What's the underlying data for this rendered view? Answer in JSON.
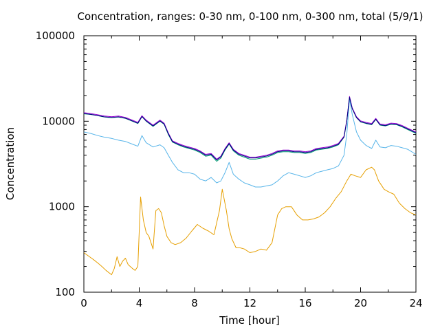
{
  "chart_data": {
    "type": "line",
    "title": "Concentration, ranges: 0-30 nm, 0-100 nm, 0-300 nm, total (5/9/1)",
    "xlabel": "Time [hour]",
    "ylabel": "Concentration",
    "xlim": [
      0,
      24
    ],
    "ylim": [
      100,
      100000
    ],
    "yscale": "log",
    "grid": false,
    "x_ticks": [
      "0",
      "4",
      "8",
      "12",
      "16",
      "20",
      "24"
    ],
    "y_ticks": [
      "100",
      "1000",
      "10000",
      "100000"
    ],
    "colors": {
      "range_0_30": "#e69f00",
      "range_0_100": "#56b4e9",
      "range_0_300": "#009e73",
      "total": "#9400d3",
      "total_dark": "#000080"
    },
    "series": [
      {
        "key": "range_0_30",
        "x": [
          0,
          0.4,
          0.7,
          1.0,
          1.3,
          1.6,
          2.0,
          2.2,
          2.4,
          2.6,
          2.8,
          3.0,
          3.2,
          3.5,
          3.7,
          3.9,
          4.1,
          4.3,
          4.5,
          4.7,
          5.0,
          5.2,
          5.4,
          5.6,
          5.8,
          6.0,
          6.3,
          6.6,
          7.0,
          7.4,
          7.8,
          8.2,
          8.6,
          9.0,
          9.4,
          9.8,
          10.0,
          10.3,
          10.5,
          10.7,
          11.0,
          11.3,
          11.6,
          12.0,
          12.4,
          12.8,
          13.2,
          13.6,
          14.0,
          14.3,
          14.6,
          15.0,
          15.4,
          15.8,
          16.2,
          16.6,
          17.0,
          17.4,
          17.8,
          18.2,
          18.6,
          19.0,
          19.3,
          19.6,
          20.0,
          20.4,
          20.8,
          21.0,
          21.3,
          21.7,
          22.0,
          22.4,
          22.8,
          23.2,
          23.6,
          24.0
        ],
        "y": [
          290,
          260,
          240,
          220,
          200,
          180,
          160,
          190,
          260,
          200,
          230,
          250,
          210,
          190,
          180,
          200,
          1300,
          700,
          500,
          450,
          320,
          900,
          950,
          850,
          600,
          450,
          380,
          360,
          380,
          430,
          520,
          620,
          560,
          520,
          470,
          900,
          1600,
          900,
          550,
          420,
          330,
          330,
          320,
          290,
          300,
          320,
          310,
          380,
          800,
          950,
          1000,
          1000,
          800,
          700,
          700,
          720,
          760,
          850,
          1000,
          1250,
          1500,
          2000,
          2400,
          2300,
          2200,
          2700,
          2900,
          2700,
          2000,
          1600,
          1500,
          1400,
          1100,
          950,
          850,
          800
        ]
      },
      {
        "key": "range_0_100",
        "x": [
          0,
          0.5,
          1.0,
          1.5,
          2.0,
          2.5,
          3.0,
          3.5,
          3.9,
          4.2,
          4.5,
          5.0,
          5.5,
          5.8,
          6.1,
          6.4,
          6.8,
          7.2,
          7.6,
          8.0,
          8.4,
          8.8,
          9.2,
          9.6,
          9.9,
          10.2,
          10.5,
          10.8,
          11.2,
          11.6,
          12.0,
          12.4,
          12.8,
          13.2,
          13.6,
          14.0,
          14.4,
          14.8,
          15.2,
          15.6,
          16.0,
          16.4,
          16.8,
          17.2,
          17.6,
          18.0,
          18.4,
          18.8,
          19.0,
          19.2,
          19.4,
          19.7,
          20.0,
          20.4,
          20.8,
          21.1,
          21.4,
          21.8,
          22.2,
          22.6,
          23.0,
          23.4,
          24.0
        ],
        "y": [
          7500,
          7200,
          6800,
          6500,
          6300,
          6000,
          5800,
          5400,
          5100,
          6800,
          5600,
          5000,
          5300,
          4900,
          4000,
          3300,
          2700,
          2500,
          2500,
          2400,
          2100,
          2000,
          2200,
          1900,
          2000,
          2500,
          3300,
          2400,
          2100,
          1900,
          1800,
          1700,
          1700,
          1750,
          1800,
          2000,
          2300,
          2500,
          2400,
          2300,
          2200,
          2300,
          2500,
          2600,
          2700,
          2800,
          3000,
          4000,
          7000,
          18000,
          12000,
          7500,
          6000,
          5200,
          4800,
          6000,
          5000,
          4900,
          5200,
          5100,
          4900,
          4700,
          4100
        ]
      },
      {
        "key": "range_0_300",
        "x": [
          0,
          0.5,
          1.0,
          1.5,
          2.0,
          2.5,
          3.0,
          3.5,
          3.9,
          4.2,
          4.5,
          5.0,
          5.5,
          5.8,
          6.1,
          6.4,
          6.8,
          7.2,
          7.6,
          8.0,
          8.4,
          8.8,
          9.2,
          9.6,
          9.9,
          10.2,
          10.5,
          10.8,
          11.2,
          11.6,
          12.0,
          12.4,
          12.8,
          13.2,
          13.6,
          14.0,
          14.4,
          14.8,
          15.2,
          15.6,
          16.0,
          16.4,
          16.8,
          17.2,
          17.6,
          18.0,
          18.4,
          18.8,
          19.0,
          19.2,
          19.4,
          19.7,
          20.0,
          20.4,
          20.8,
          21.1,
          21.4,
          21.8,
          22.2,
          22.6,
          23.0,
          23.4,
          24.0
        ],
        "y": [
          12200,
          12000,
          11600,
          11200,
          11000,
          11200,
          10800,
          10000,
          9400,
          11300,
          10000,
          8700,
          10000,
          9200,
          7000,
          5700,
          5300,
          5000,
          4800,
          4600,
          4300,
          3900,
          4000,
          3400,
          3700,
          4600,
          5400,
          4500,
          4000,
          3800,
          3600,
          3600,
          3700,
          3800,
          4000,
          4300,
          4400,
          4400,
          4300,
          4300,
          4200,
          4300,
          4600,
          4700,
          4800,
          5000,
          5300,
          6500,
          10000,
          19000,
          14000,
          11000,
          9800,
          9400,
          9100,
          10500,
          9000,
          8800,
          9200,
          9100,
          8600,
          8000,
          7200
        ]
      },
      {
        "key": "total",
        "x": [
          0,
          0.5,
          1.0,
          1.5,
          2.0,
          2.5,
          3.0,
          3.5,
          3.9,
          4.2,
          4.5,
          5.0,
          5.5,
          5.8,
          6.1,
          6.4,
          6.8,
          7.2,
          7.6,
          8.0,
          8.4,
          8.8,
          9.2,
          9.6,
          9.9,
          10.2,
          10.5,
          10.8,
          11.2,
          11.6,
          12.0,
          12.4,
          12.8,
          13.2,
          13.6,
          14.0,
          14.4,
          14.8,
          15.2,
          15.6,
          16.0,
          16.4,
          16.8,
          17.2,
          17.6,
          18.0,
          18.4,
          18.8,
          19.0,
          19.2,
          19.4,
          19.7,
          20.0,
          20.4,
          20.8,
          21.1,
          21.4,
          21.8,
          22.2,
          22.6,
          23.0,
          23.4,
          24.0
        ],
        "y": [
          12600,
          12300,
          11900,
          11500,
          11300,
          11500,
          11100,
          10300,
          9700,
          11600,
          10300,
          9000,
          10300,
          9500,
          7300,
          5900,
          5500,
          5200,
          5000,
          4800,
          4500,
          4100,
          4200,
          3600,
          3900,
          4800,
          5600,
          4700,
          4200,
          4000,
          3800,
          3800,
          3900,
          4000,
          4200,
          4500,
          4600,
          4600,
          4500,
          4500,
          4400,
          4500,
          4800,
          4900,
          5000,
          5200,
          5500,
          6700,
          10300,
          19500,
          14300,
          11300,
          10100,
          9700,
          9400,
          10800,
          9300,
          9100,
          9500,
          9400,
          8900,
          8300,
          7500
        ]
      }
    ]
  }
}
